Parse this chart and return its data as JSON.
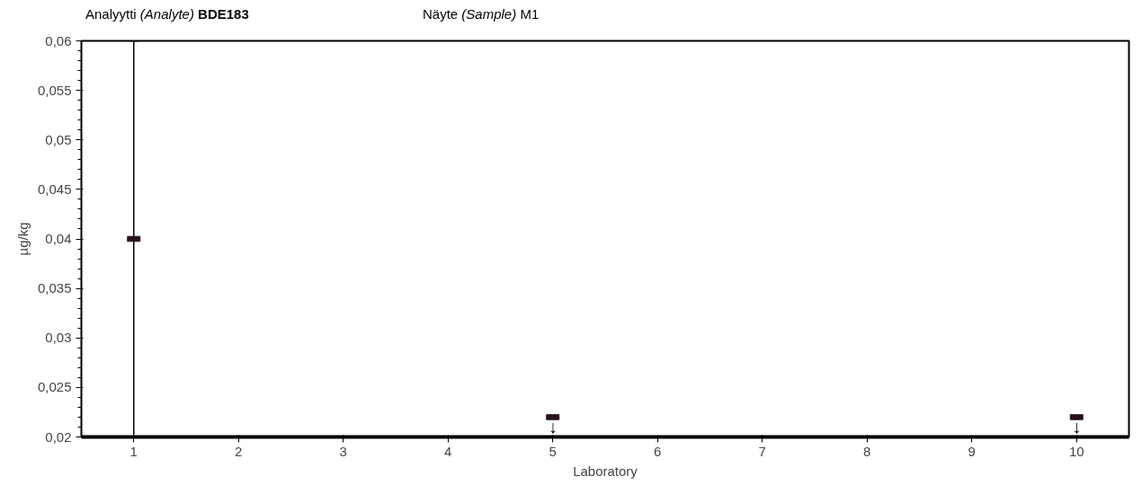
{
  "chart_data": {
    "type": "scatter",
    "title": "Analyytti (Analyte) BDE183",
    "subtitle": "Näyte (Sample) M1",
    "xlabel": "Laboratory",
    "ylabel": "µg/kg",
    "categories": [
      "1",
      "2",
      "3",
      "4",
      "5",
      "6",
      "7",
      "8",
      "9",
      "10"
    ],
    "values": [
      0.04,
      null,
      null,
      null,
      0.022,
      null,
      null,
      null,
      null,
      0.022
    ],
    "errors": [
      0.02,
      null,
      null,
      null,
      null,
      null,
      null,
      null,
      null,
      null
    ],
    "color": "#2a0f1e",
    "annotations": [
      {
        "text": "↓",
        "x": "5",
        "y": 0.022
      },
      {
        "text": "↓",
        "x": "10",
        "y": 0.022
      }
    ],
    "ylim": [
      0.02,
      0.06
    ],
    "yticks": [
      {
        "value": 0.02,
        "label": "0,02"
      },
      {
        "value": 0.025,
        "label": "0,025"
      },
      {
        "value": 0.03,
        "label": "0,03"
      },
      {
        "value": 0.035,
        "label": "0,035"
      },
      {
        "value": 0.04,
        "label": "0,04"
      },
      {
        "value": 0.045,
        "label": "0,045"
      },
      {
        "value": 0.05,
        "label": "0,05"
      },
      {
        "value": 0.055,
        "label": "0,055"
      },
      {
        "value": 0.06,
        "label": "0,06"
      }
    ],
    "grid": false
  }
}
